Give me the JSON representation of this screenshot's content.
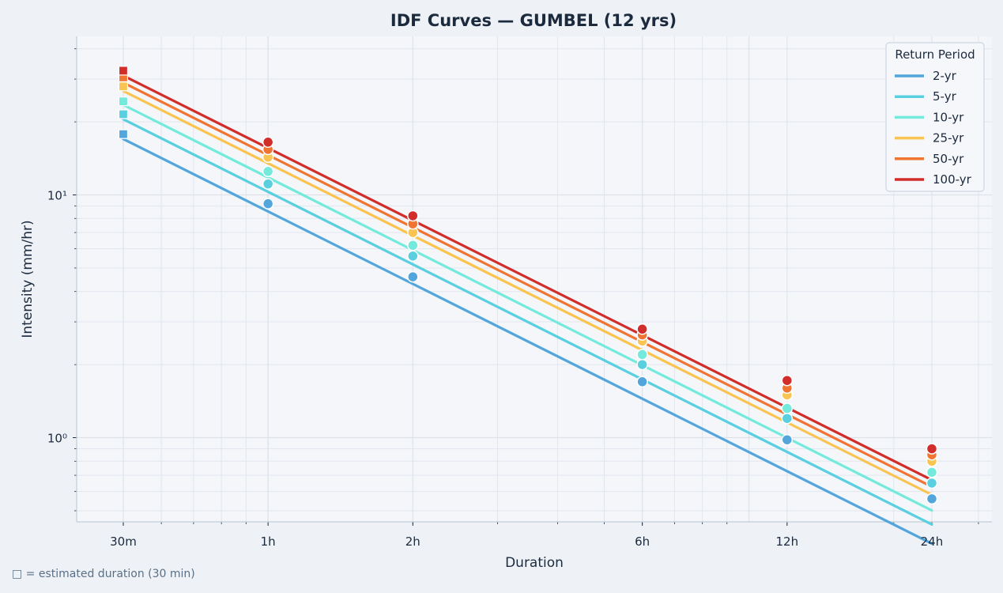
{
  "chart_data": {
    "type": "line",
    "title": "IDF Curves — GUMBEL  (12 yrs)",
    "xlabel": "Duration",
    "ylabel": "Intensity (mm/hr)",
    "x_scale": "log",
    "y_scale": "log",
    "x_unit": "hours",
    "categories": [
      "30m",
      "1h",
      "2h",
      "6h",
      "12h",
      "24h"
    ],
    "x": [
      0.5,
      1,
      2,
      6,
      12,
      24
    ],
    "xlim": [
      0.4,
      32
    ],
    "ylim": [
      0.45,
      45
    ],
    "y_major_ticks": [
      {
        "value": 1,
        "label": "10⁰"
      },
      {
        "value": 10,
        "label": "10¹"
      }
    ],
    "grid": true,
    "legend": {
      "title": "Return Period",
      "position": "top-right"
    },
    "estimated_point_index": 0,
    "series": [
      {
        "name": "2-yr",
        "color": "#52a6db",
        "points": [
          17.8,
          9.2,
          4.6,
          1.7,
          0.98,
          0.56
        ],
        "fit": [
          17.0,
          8.55
        ]
      },
      {
        "name": "5-yr",
        "color": "#5acfe0",
        "points": [
          21.5,
          11.1,
          5.6,
          2.0,
          1.2,
          0.65
        ],
        "fit": [
          20.5,
          10.3
        ]
      },
      {
        "name": "10-yr",
        "color": "#73eadb",
        "points": [
          24.3,
          12.5,
          6.2,
          2.2,
          1.32,
          0.72
        ],
        "fit": [
          23.5,
          11.8
        ]
      },
      {
        "name": "25-yr",
        "color": "#f9c451",
        "points": [
          28.0,
          14.3,
          7.0,
          2.5,
          1.5,
          0.8
        ],
        "fit": [
          26.8,
          13.5
        ]
      },
      {
        "name": "50-yr",
        "color": "#f07432",
        "points": [
          30.5,
          15.4,
          7.6,
          2.65,
          1.6,
          0.85
        ],
        "fit": [
          29.0,
          14.6
        ]
      },
      {
        "name": "100-yr",
        "color": "#d12d2b",
        "points": [
          32.5,
          16.5,
          8.2,
          2.8,
          1.72,
          0.9
        ],
        "fit": [
          31.0,
          15.6
        ]
      }
    ]
  },
  "footnote": "□ = estimated duration (30 min)"
}
